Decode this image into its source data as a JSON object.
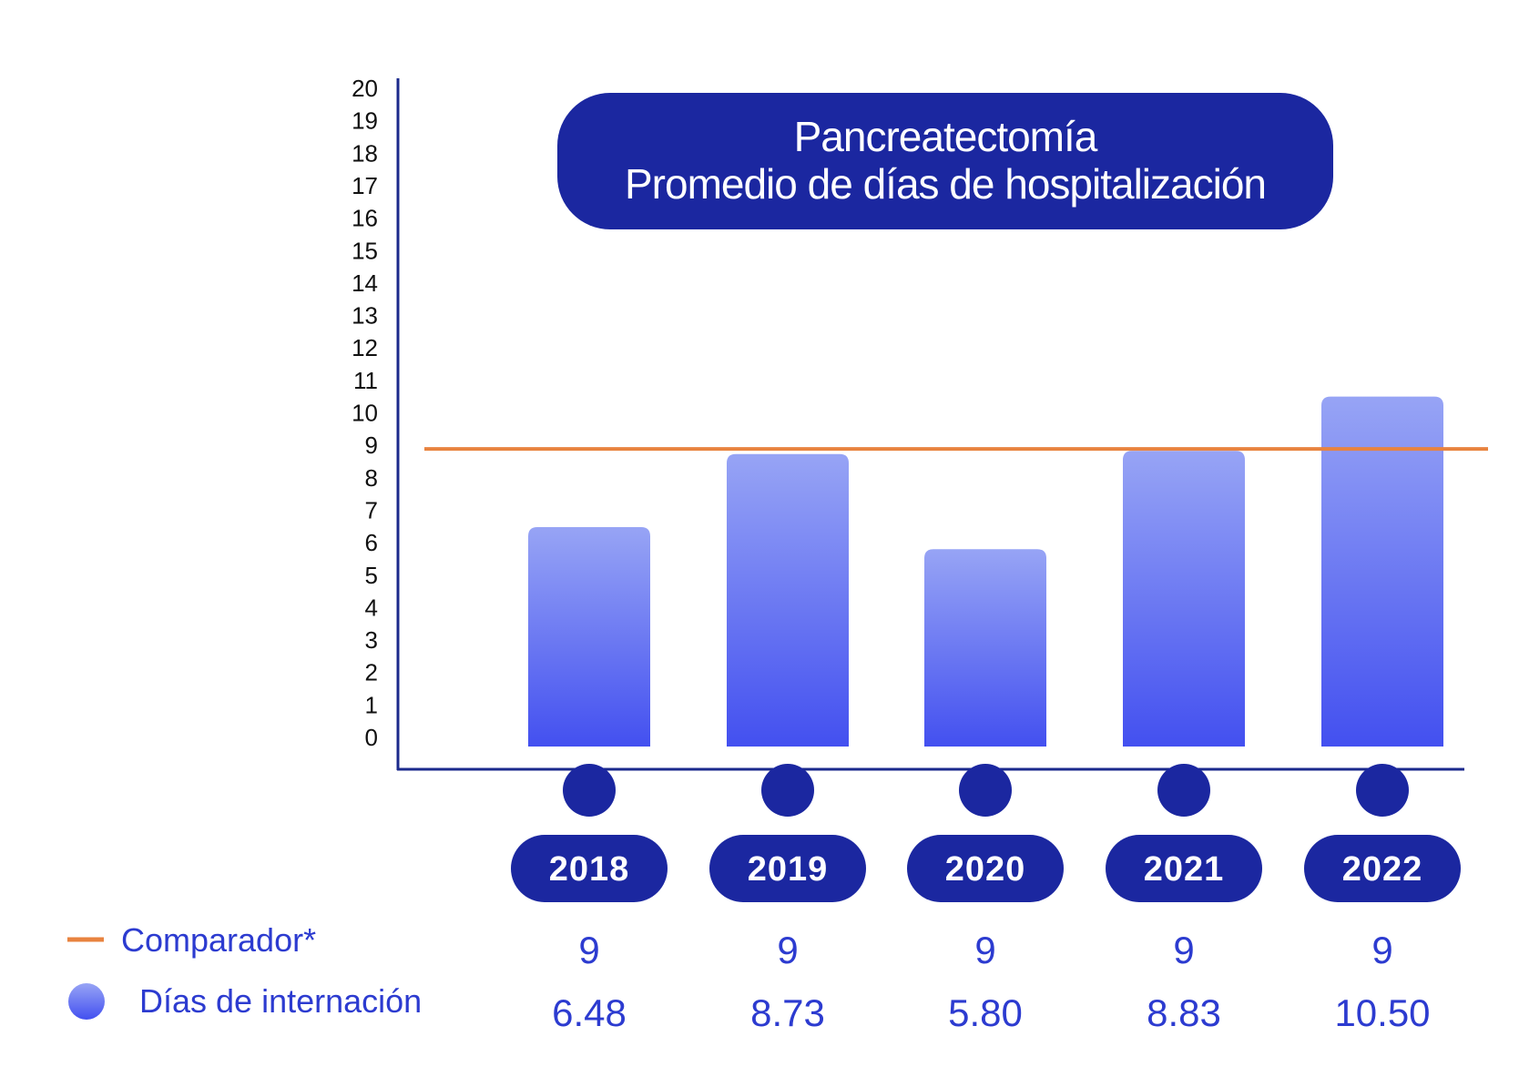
{
  "title": {
    "line1": "Pancreatectomía",
    "line2": "Promedio de días de hospitalización"
  },
  "colors": {
    "navy": "#1b27a0",
    "axis": "#1b2a8c",
    "comparator": "#e8833f",
    "bar_top": "#97a4f5",
    "bar_bottom": "#4350f0",
    "value_text": "#2c3bd0"
  },
  "chart_data": {
    "type": "bar",
    "categories": [
      "2018",
      "2019",
      "2020",
      "2021",
      "2022"
    ],
    "series": [
      {
        "name": "Días de internación",
        "values": [
          6.48,
          8.73,
          5.8,
          8.83,
          10.5
        ]
      },
      {
        "name": "Comparador*",
        "values": [
          9,
          9,
          9,
          9,
          9
        ],
        "render": "line"
      }
    ],
    "ylim": [
      0,
      20
    ],
    "yticks": [
      "0",
      "1",
      "2",
      "3",
      "4",
      "5",
      "6",
      "7",
      "8",
      "9",
      "10",
      "11",
      "12",
      "13",
      "14",
      "15",
      "16",
      "17",
      "18",
      "19",
      "20"
    ],
    "grid": false
  },
  "legend": {
    "comparator_label": "Comparador*",
    "days_label": "Días de internación"
  },
  "table": {
    "comparator_values": [
      "9",
      "9",
      "9",
      "9",
      "9"
    ],
    "days_values": [
      "6.48",
      "8.73",
      "5.80",
      "8.83",
      "10.50"
    ]
  }
}
